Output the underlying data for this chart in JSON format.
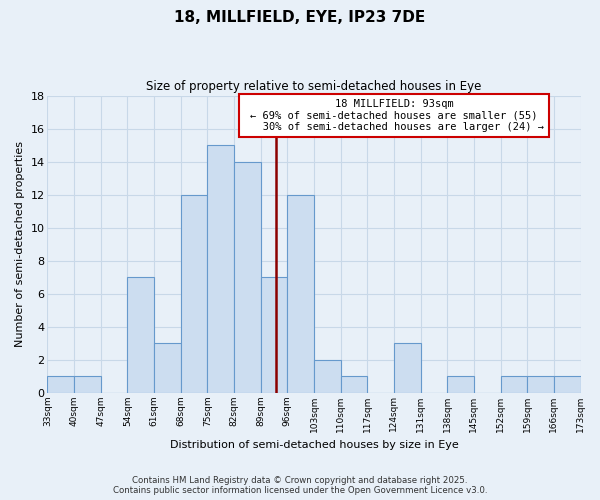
{
  "title": "18, MILLFIELD, EYE, IP23 7DE",
  "subtitle": "Size of property relative to semi-detached houses in Eye",
  "xlabel": "Distribution of semi-detached houses by size in Eye",
  "ylabel": "Number of semi-detached properties",
  "bin_labels": [
    "33sqm",
    "40sqm",
    "47sqm",
    "54sqm",
    "61sqm",
    "68sqm",
    "75sqm",
    "82sqm",
    "89sqm",
    "96sqm",
    "103sqm",
    "110sqm",
    "117sqm",
    "124sqm",
    "131sqm",
    "138sqm",
    "145sqm",
    "152sqm",
    "159sqm",
    "166sqm",
    "173sqm"
  ],
  "bin_edges": [
    33,
    40,
    47,
    54,
    61,
    68,
    75,
    82,
    89,
    96,
    103,
    110,
    117,
    124,
    131,
    138,
    145,
    152,
    159,
    166,
    173
  ],
  "counts": [
    1,
    1,
    0,
    7,
    3,
    12,
    15,
    14,
    7,
    12,
    2,
    1,
    0,
    3,
    0,
    1,
    0,
    1,
    1,
    1
  ],
  "bar_color": "#ccddf0",
  "bar_edge_color": "#6699cc",
  "property_value": 93,
  "pct_smaller": 69,
  "n_smaller": 55,
  "pct_larger": 30,
  "n_larger": 24,
  "annotation_line_color": "#8b0000",
  "annotation_box_edge_color": "#cc0000",
  "ylim": [
    0,
    18
  ],
  "yticks": [
    0,
    2,
    4,
    6,
    8,
    10,
    12,
    14,
    16,
    18
  ],
  "grid_color": "#c8d8e8",
  "bg_color": "#e8f0f8",
  "footer1": "Contains HM Land Registry data © Crown copyright and database right 2025.",
  "footer2": "Contains public sector information licensed under the Open Government Licence v3.0."
}
